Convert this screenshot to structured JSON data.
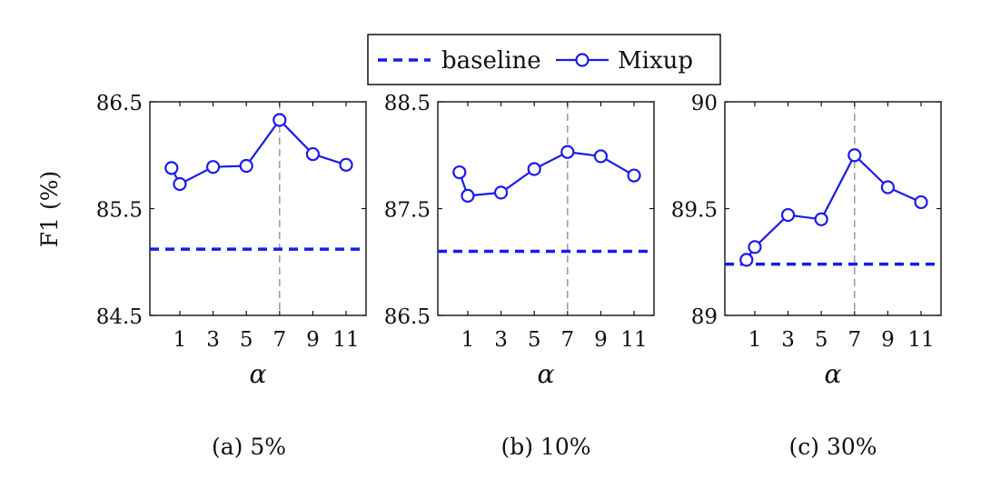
{
  "legend": {
    "baseline_label": "baseline",
    "mixup_label": "Mixup"
  },
  "ylabel": "F1 (%)",
  "colors": {
    "series": "#1a1aef",
    "guide": "#999999",
    "axes": "#111111"
  },
  "chart_data": [
    {
      "type": "line",
      "caption": "(a) 5%",
      "xlabel": "α",
      "xlim": [
        -0.8,
        12.2
      ],
      "xticks": [
        1,
        3,
        5,
        7,
        9,
        11
      ],
      "ylim": [
        84.5,
        86.5
      ],
      "yticks": [
        "84.5",
        "85.5",
        "86.5"
      ],
      "reference_x": 7,
      "series": [
        {
          "name": "baseline",
          "style": "dashed",
          "y": 85.12
        },
        {
          "name": "Mixup",
          "style": "line-circle",
          "x": [
            0.5,
            1,
            3,
            5,
            7,
            9,
            11
          ],
          "y": [
            85.88,
            85.73,
            85.89,
            85.9,
            86.33,
            86.01,
            85.91
          ]
        }
      ]
    },
    {
      "type": "line",
      "caption": "(b) 10%",
      "xlabel": "α",
      "xlim": [
        -0.8,
        12.2
      ],
      "xticks": [
        1,
        3,
        5,
        7,
        9,
        11
      ],
      "ylim": [
        86.5,
        88.5
      ],
      "yticks": [
        "86.5",
        "87.5",
        "88.5"
      ],
      "reference_x": 7,
      "series": [
        {
          "name": "baseline",
          "style": "dashed",
          "y": 87.1
        },
        {
          "name": "Mixup",
          "style": "line-circle",
          "x": [
            0.5,
            1,
            3,
            5,
            7,
            9,
            11
          ],
          "y": [
            87.84,
            87.62,
            87.65,
            87.87,
            88.03,
            87.99,
            87.81
          ]
        }
      ]
    },
    {
      "type": "line",
      "caption": "(c) 30%",
      "xlabel": "α",
      "xlim": [
        -0.8,
        12.2
      ],
      "xticks": [
        1,
        3,
        5,
        7,
        9,
        11
      ],
      "ylim": [
        89,
        90
      ],
      "yticks": [
        "89",
        "89.5",
        "90"
      ],
      "reference_x": 7,
      "series": [
        {
          "name": "baseline",
          "style": "dashed",
          "y": 89.24
        },
        {
          "name": "Mixup",
          "style": "line-circle",
          "x": [
            0.5,
            1,
            3,
            5,
            7,
            9,
            11
          ],
          "y": [
            89.26,
            89.32,
            89.47,
            89.45,
            89.75,
            89.6,
            89.53
          ]
        }
      ]
    }
  ]
}
